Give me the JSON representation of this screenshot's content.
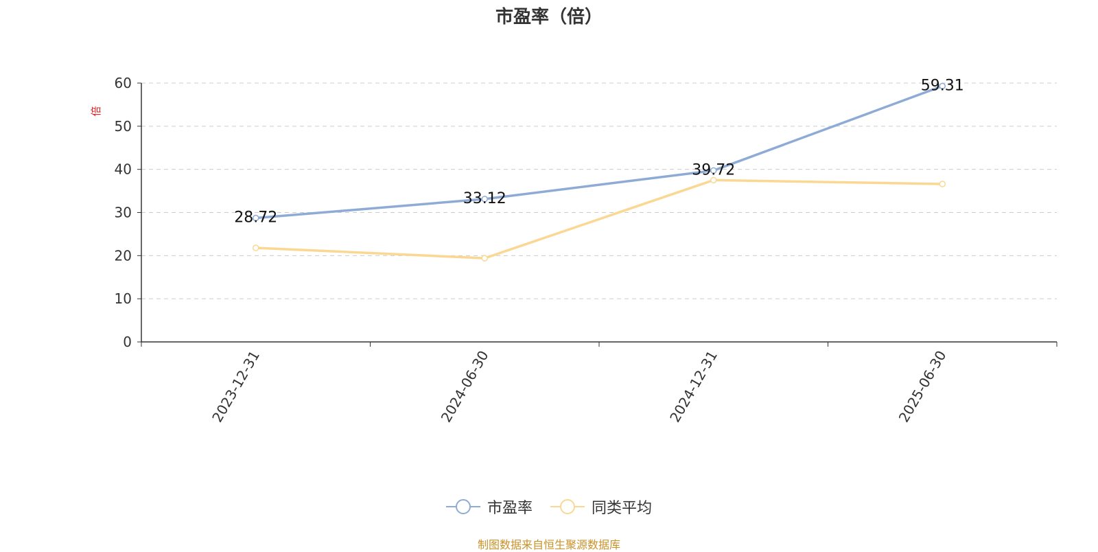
{
  "chart_data": {
    "type": "line",
    "title": "市盈率（倍）",
    "ylabel": "倍",
    "categories": [
      "2023-12-31",
      "2024-06-30",
      "2024-12-31",
      "2025-06-30"
    ],
    "series": [
      {
        "name": "市盈率",
        "values": [
          28.72,
          33.12,
          39.72,
          59.31
        ],
        "color": "#8eabd6",
        "show_labels": true
      },
      {
        "name": "同类平均",
        "values": [
          21.8,
          19.4,
          37.5,
          36.6
        ],
        "color": "#fad893",
        "show_labels": false
      }
    ],
    "ylim": [
      0,
      60
    ],
    "yticks": [
      0,
      10,
      20,
      30,
      40,
      50,
      60
    ],
    "grid": true,
    "legend_position": "bottom"
  },
  "source_note": "制图数据来自恒生聚源数据库",
  "colors": {
    "axis": "#333333",
    "grid": "#cccccc",
    "ylabel": "#e02020",
    "source": "#c8922a"
  }
}
